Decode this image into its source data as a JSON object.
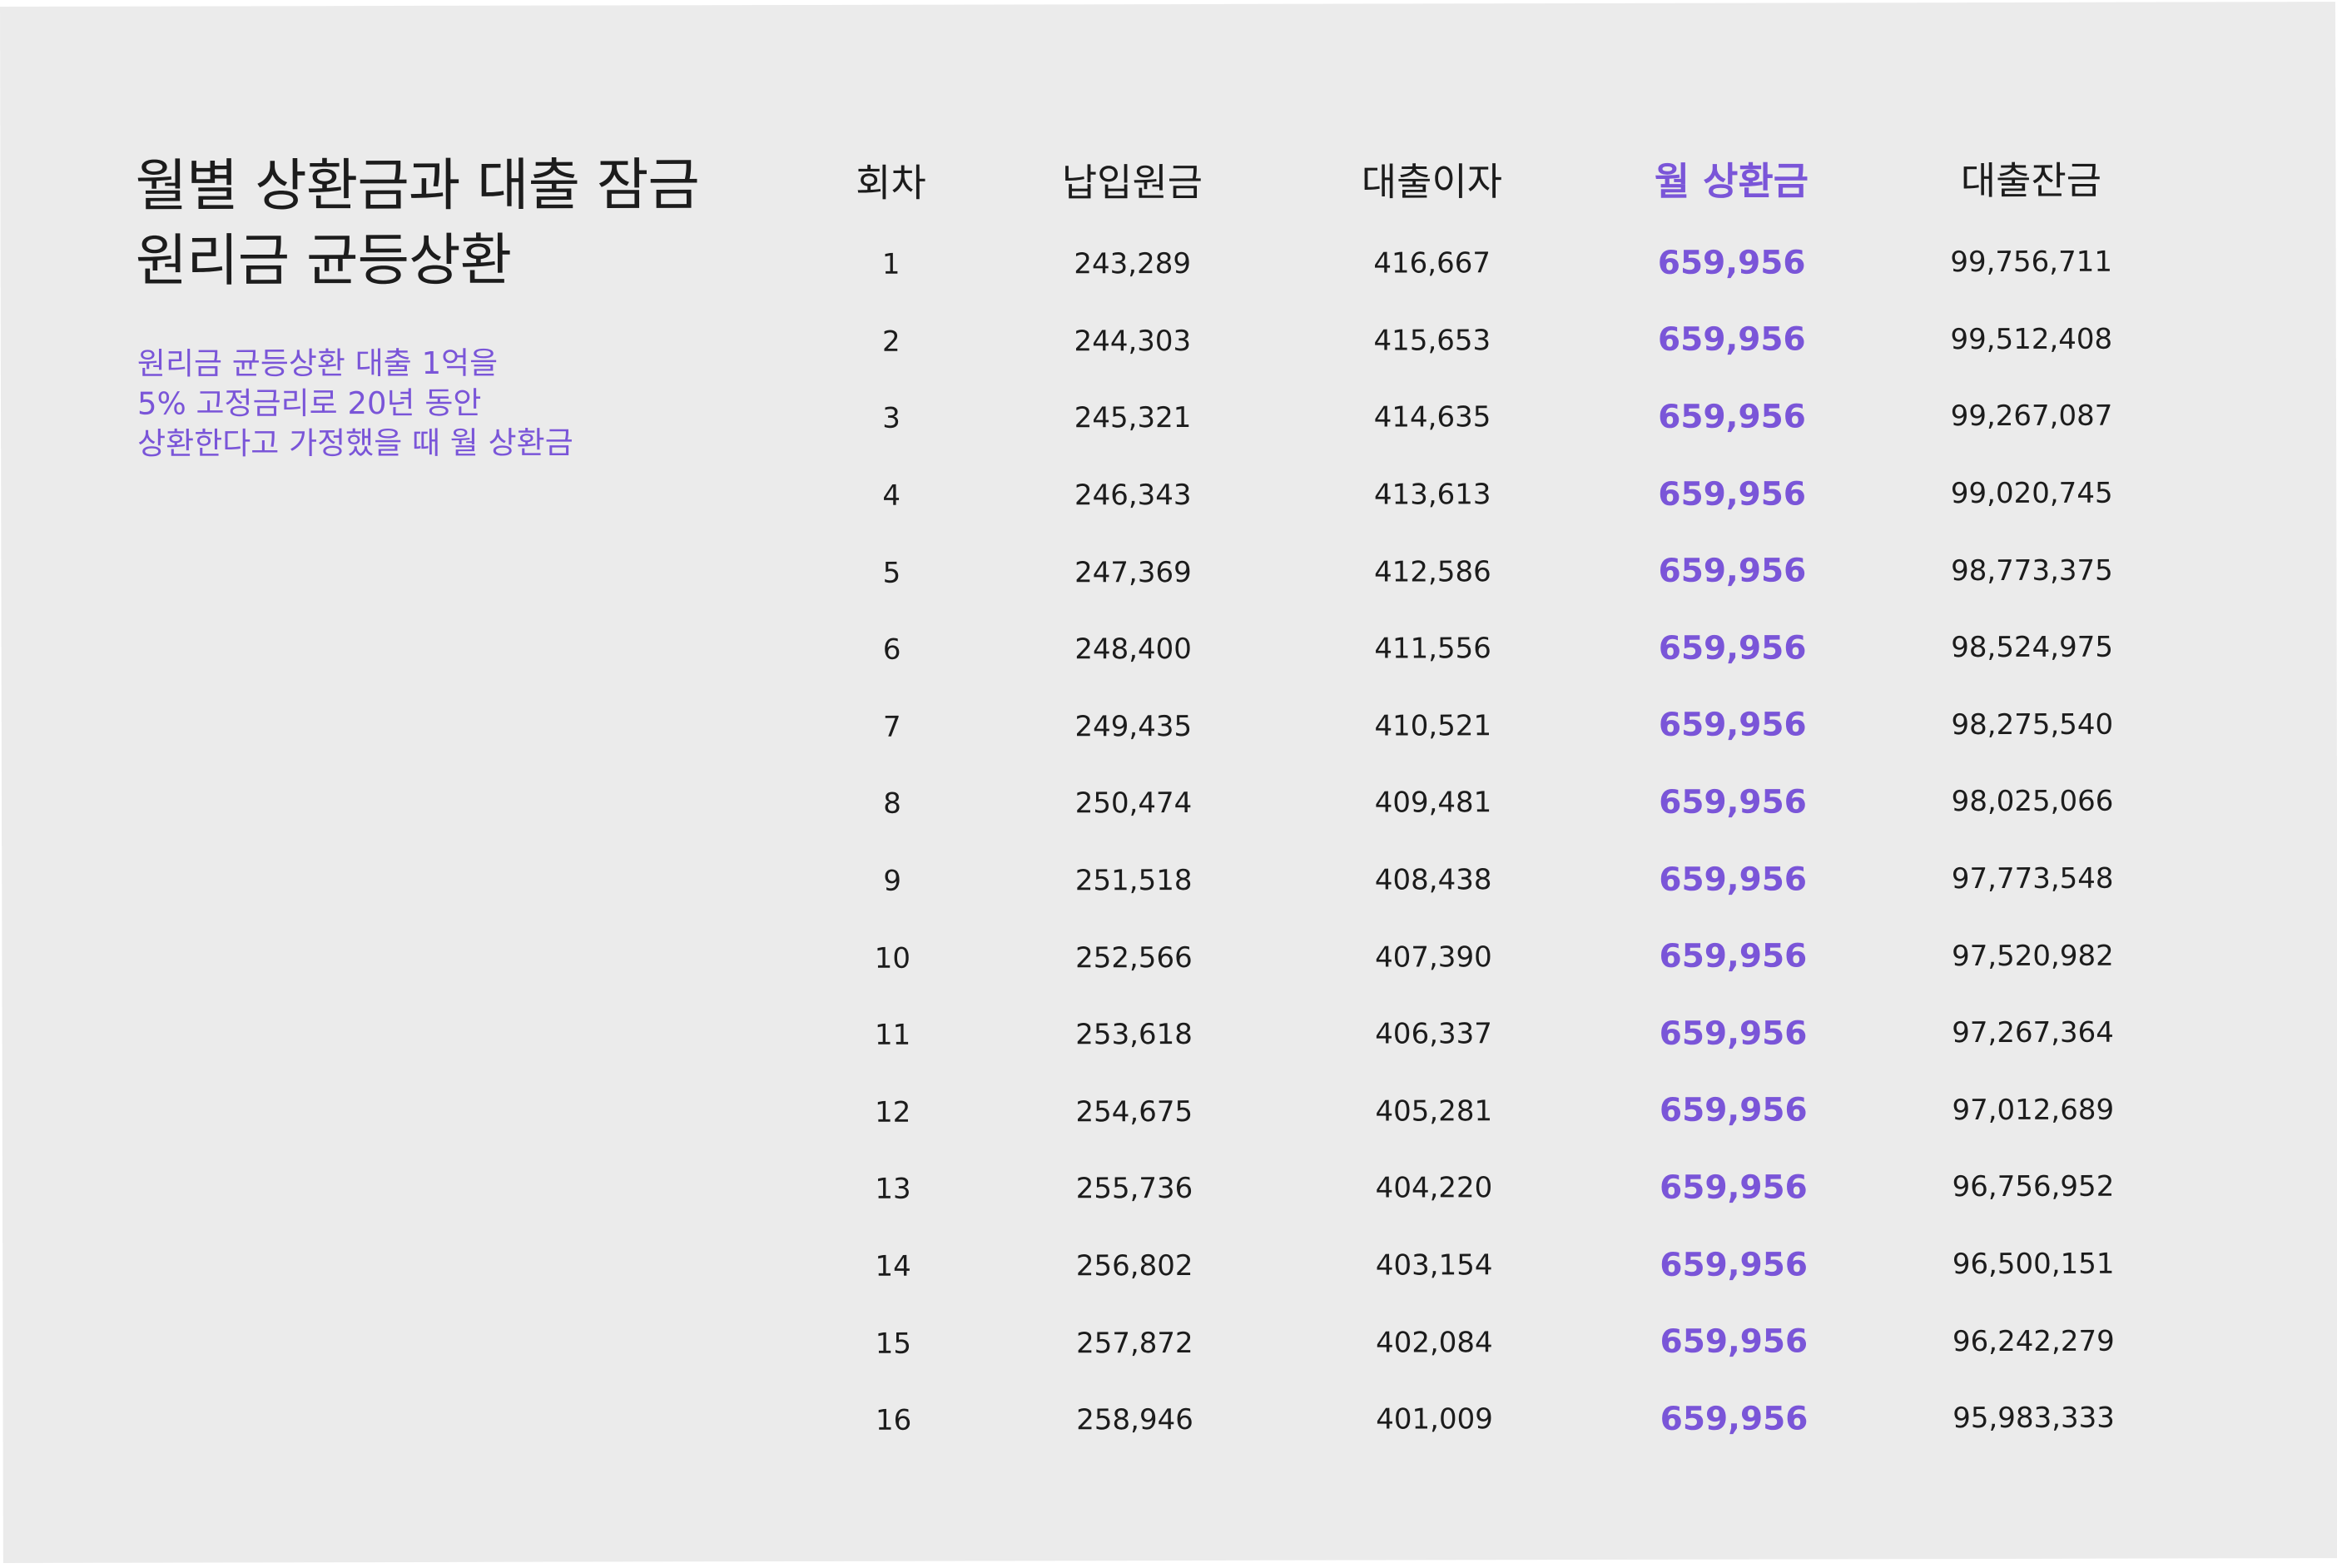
{
  "title": {
    "line1": "월별 상환금과 대출 잠금",
    "line2": "원리금 균등상환"
  },
  "description": {
    "line1": "원리금 균등상환 대출 1억을",
    "line2": "5% 고정금리로 20년 동안",
    "line3": "상환한다고 가정했을 때 월 상환금"
  },
  "colors": {
    "accent": "#7a55d8",
    "text": "#1c1c1c",
    "background": "#ebebeb"
  },
  "table": {
    "headers": [
      "회차",
      "납입원금",
      "대출이자",
      "월 상환금",
      "대출잔금"
    ],
    "rows": [
      [
        "1",
        "243,289",
        "416,667",
        "659,956",
        "99,756,711"
      ],
      [
        "2",
        "244,303",
        "415,653",
        "659,956",
        "99,512,408"
      ],
      [
        "3",
        "245,321",
        "414,635",
        "659,956",
        "99,267,087"
      ],
      [
        "4",
        "246,343",
        "413,613",
        "659,956",
        "99,020,745"
      ],
      [
        "5",
        "247,369",
        "412,586",
        "659,956",
        "98,773,375"
      ],
      [
        "6",
        "248,400",
        "411,556",
        "659,956",
        "98,524,975"
      ],
      [
        "7",
        "249,435",
        "410,521",
        "659,956",
        "98,275,540"
      ],
      [
        "8",
        "250,474",
        "409,481",
        "659,956",
        "98,025,066"
      ],
      [
        "9",
        "251,518",
        "408,438",
        "659,956",
        "97,773,548"
      ],
      [
        "10",
        "252,566",
        "407,390",
        "659,956",
        "97,520,982"
      ],
      [
        "11",
        "253,618",
        "406,337",
        "659,956",
        "97,267,364"
      ],
      [
        "12",
        "254,675",
        "405,281",
        "659,956",
        "97,012,689"
      ],
      [
        "13",
        "255,736",
        "404,220",
        "659,956",
        "96,756,952"
      ],
      [
        "14",
        "256,802",
        "403,154",
        "659,956",
        "96,500,151"
      ],
      [
        "15",
        "257,872",
        "402,084",
        "659,956",
        "96,242,279"
      ],
      [
        "16",
        "258,946",
        "401,009",
        "659,956",
        "95,983,333"
      ]
    ]
  }
}
